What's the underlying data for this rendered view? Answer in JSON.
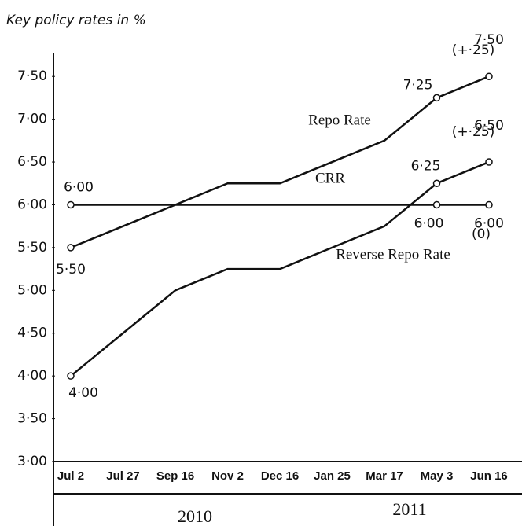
{
  "chart_data": {
    "type": "line",
    "title": "Key policy rates in %",
    "categories": [
      "Jul 2",
      "Jul 27",
      "Sep 16",
      "Nov 2",
      "Dec 16",
      "Jan 25",
      "Mar 17",
      "May 3",
      "Jun 16"
    ],
    "years": [
      "2010",
      "2011"
    ],
    "series": [
      {
        "name": "Repo Rate",
        "color": "#111111",
        "values": [
          5.5,
          5.75,
          6.0,
          6.25,
          6.25,
          6.5,
          6.75,
          7.25,
          7.5
        ],
        "value_labels": [
          "5·50",
          null,
          null,
          null,
          null,
          null,
          null,
          "7·25",
          "7·50"
        ]
      },
      {
        "name": "CRR",
        "color": "#111111",
        "values": [
          6.0,
          6.0,
          6.0,
          6.0,
          6.0,
          6.0,
          6.0,
          6.0,
          6.0
        ],
        "value_labels": [
          "6·00",
          null,
          null,
          null,
          null,
          null,
          null,
          "6·00",
          "6·00"
        ]
      },
      {
        "name": "Reverse Repo Rate",
        "color": "#111111",
        "values": [
          4.0,
          4.5,
          5.0,
          5.25,
          5.25,
          5.5,
          5.75,
          6.25,
          6.5
        ],
        "value_labels": [
          "4·00",
          null,
          null,
          null,
          null,
          null,
          null,
          "6·25",
          "6·50"
        ]
      }
    ],
    "annotations": [
      "(+·25)",
      "(0)",
      "(+·25)"
    ],
    "ylim": [
      3,
      7.75
    ],
    "yticks": [
      {
        "value": 3,
        "label": "3·00"
      },
      {
        "value": 3.5,
        "label": "3·50"
      },
      {
        "value": 4,
        "label": "4·00"
      },
      {
        "value": 4.5,
        "label": "4·50"
      },
      {
        "value": 5,
        "label": "5·00"
      },
      {
        "value": 5.5,
        "label": "5·50"
      },
      {
        "value": 6,
        "label": "6·00"
      },
      {
        "value": 6.5,
        "label": "6·50"
      },
      {
        "value": 7,
        "label": "7·00"
      },
      {
        "value": 7.5,
        "label": "7·50"
      }
    ],
    "grid": false
  }
}
